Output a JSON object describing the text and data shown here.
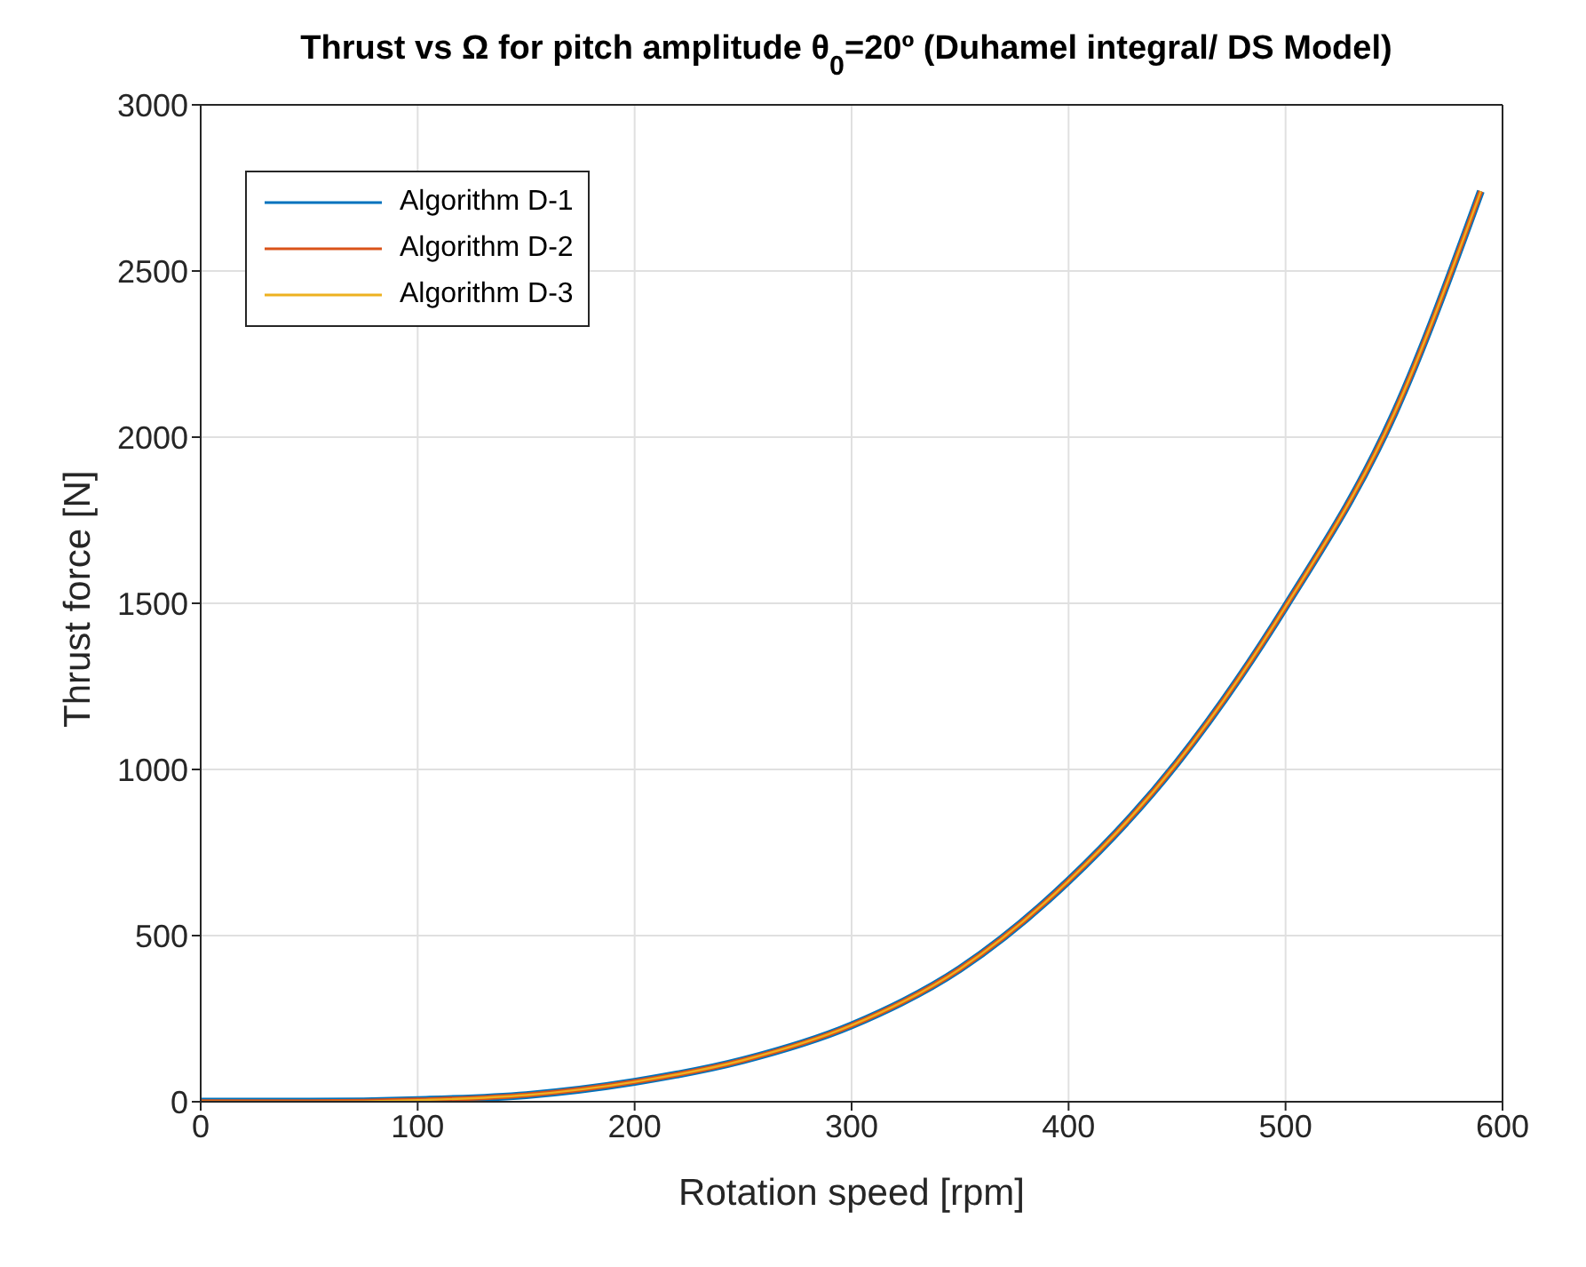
{
  "chart_data": {
    "type": "line",
    "title": "Thrust vs Ω for pitch amplitude θ$_{0}$=20º (Duhamel integral/ DS Model)",
    "xlabel": "Rotation speed [rpm]",
    "ylabel": "Thrust force [N]",
    "x": [
      0,
      50,
      100,
      150,
      200,
      250,
      300,
      350,
      400,
      450,
      500,
      550,
      590
    ],
    "series": [
      {
        "name": "Algorithm D-1",
        "color": "#0072bd",
        "values": [
          0,
          0,
          5,
          20,
          60,
          125,
          230,
          400,
          665,
          1020,
          1490,
          2070,
          2740
        ]
      },
      {
        "name": "Algorithm D-2",
        "color": "#d95319",
        "values": [
          0,
          0,
          5,
          20,
          60,
          125,
          230,
          400,
          665,
          1020,
          1490,
          2070,
          2740
        ]
      },
      {
        "name": "Algorithm D-3",
        "color": "#edb120",
        "values": [
          0,
          0,
          5,
          20,
          60,
          125,
          230,
          400,
          665,
          1020,
          1490,
          2070,
          2740
        ]
      }
    ],
    "xlim": [
      0,
      600
    ],
    "xticks": [
      0,
      100,
      200,
      300,
      400,
      500,
      600
    ],
    "ylim": [
      0,
      3000
    ],
    "yticks": [
      0,
      500,
      1000,
      1500,
      2000,
      2500,
      3000
    ],
    "grid": true,
    "legend": "top left",
    "marker": "none",
    "line_style": "solid"
  }
}
